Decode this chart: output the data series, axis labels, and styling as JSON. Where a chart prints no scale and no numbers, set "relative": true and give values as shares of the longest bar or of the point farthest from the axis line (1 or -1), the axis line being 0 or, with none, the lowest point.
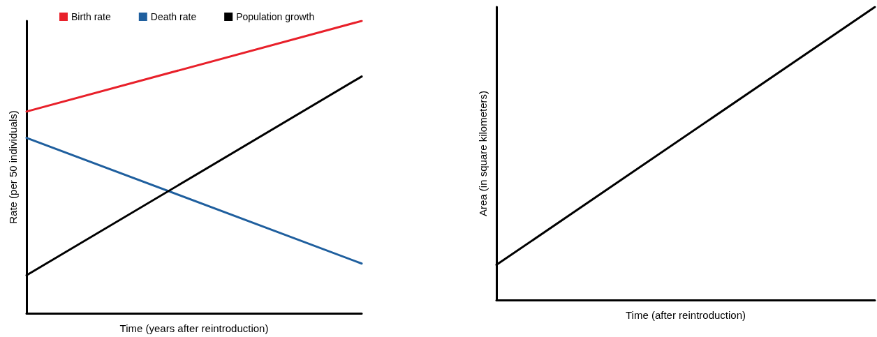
{
  "chart_data": [
    {
      "type": "line",
      "xlabel": "Time (years after reintroduction)",
      "ylabel": "Rate (per 50 individuals)",
      "categories": [
        null,
        null
      ],
      "relative": true,
      "grid": false,
      "legend": "top",
      "marker": "none",
      "line_style": "solid",
      "series": [
        {
          "name": "Birth rate",
          "color": "#e8202a",
          "values": [
            0.69,
            1
          ]
        },
        {
          "name": "Death rate",
          "color": "#1f5f9e",
          "values": [
            0.6,
            0.17
          ]
        },
        {
          "name": "Population growth",
          "color": "#000000",
          "values": [
            0.13,
            0.81
          ]
        }
      ]
    },
    {
      "type": "line",
      "xlabel": "Time (after reintroduction)",
      "ylabel": "Area (in square kilometers)",
      "categories": [
        null,
        null
      ],
      "relative": true,
      "grid": false,
      "legend": false,
      "marker": "none",
      "line_style": "solid",
      "series": [
        {
          "color": "#000000",
          "values": [
            0.12,
            1
          ]
        }
      ]
    }
  ]
}
